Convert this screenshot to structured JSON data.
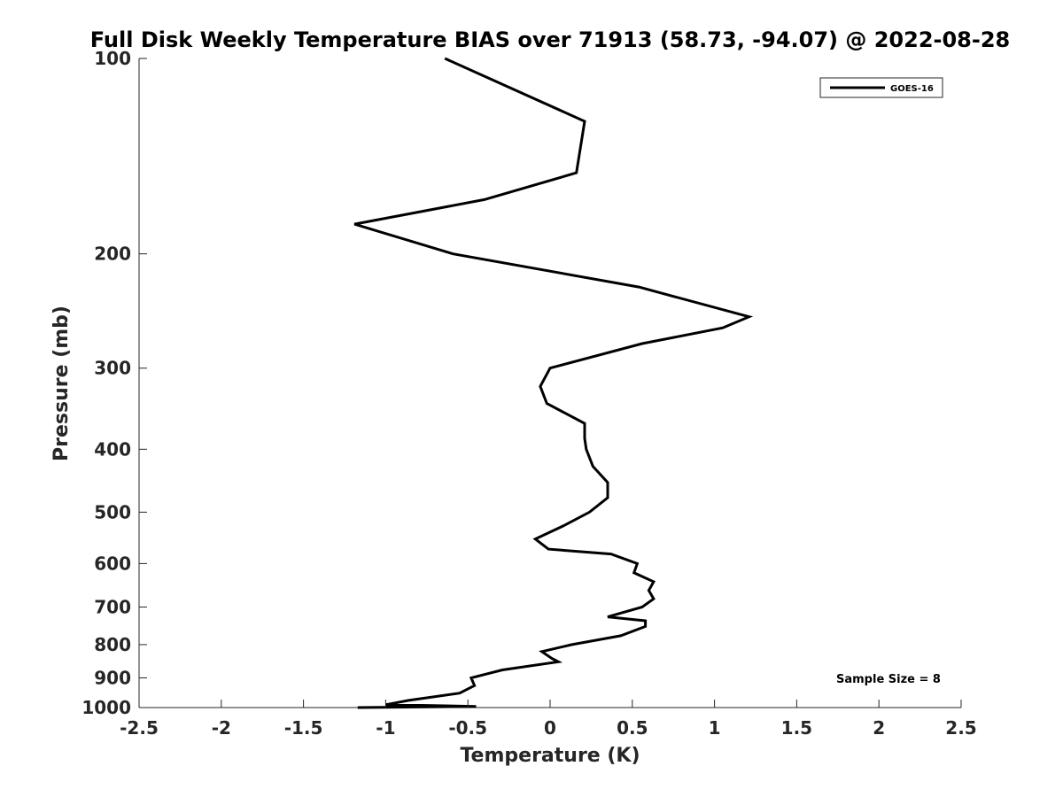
{
  "chart_data": {
    "type": "line",
    "title": "Full Disk Weekly Temperature BIAS over 71913 (58.73, -94.07) @ 2022-08-28",
    "xlabel": "Temperature (K)",
    "ylabel": "Pressure (mb)",
    "xlim": [
      -2.5,
      2.5
    ],
    "ylim": [
      100,
      1000
    ],
    "y_scale": "log",
    "y_reversed": true,
    "grid": false,
    "x_ticks": [
      -2.5,
      -2,
      -1.5,
      -1,
      -0.5,
      0,
      0.5,
      1,
      1.5,
      2,
      2.5
    ],
    "x_tick_labels": [
      "-2.5",
      "-2",
      "-1.5",
      "-1",
      "-0.5",
      "0",
      "0.5",
      "1",
      "1.5",
      "2",
      "2.5"
    ],
    "y_ticks": [
      100,
      200,
      300,
      400,
      500,
      600,
      700,
      800,
      900,
      1000
    ],
    "y_tick_labels": [
      "100",
      "200",
      "300",
      "400",
      "500",
      "600",
      "700",
      "800",
      "900",
      "1000"
    ],
    "legend": {
      "placement": "top-right",
      "entries": [
        "GOES-16"
      ]
    },
    "annotation": "Sample Size = 8",
    "series": [
      {
        "name": "GOES-16",
        "color": "#000000",
        "points": [
          {
            "t": -0.64,
            "p": 100
          },
          {
            "t": 0.21,
            "p": 125
          },
          {
            "t": 0.16,
            "p": 150
          },
          {
            "t": -0.4,
            "p": 165
          },
          {
            "t": -1.19,
            "p": 180
          },
          {
            "t": -0.59,
            "p": 200
          },
          {
            "t": 0.54,
            "p": 225
          },
          {
            "t": 1.21,
            "p": 250
          },
          {
            "t": 1.05,
            "p": 260
          },
          {
            "t": 0.56,
            "p": 275
          },
          {
            "t": 0.0,
            "p": 300
          },
          {
            "t": -0.06,
            "p": 320
          },
          {
            "t": -0.02,
            "p": 340
          },
          {
            "t": 0.21,
            "p": 365
          },
          {
            "t": 0.21,
            "p": 385
          },
          {
            "t": 0.22,
            "p": 400
          },
          {
            "t": 0.26,
            "p": 425
          },
          {
            "t": 0.35,
            "p": 450
          },
          {
            "t": 0.35,
            "p": 475
          },
          {
            "t": 0.24,
            "p": 500
          },
          {
            "t": 0.08,
            "p": 525
          },
          {
            "t": -0.09,
            "p": 550
          },
          {
            "t": -0.01,
            "p": 570
          },
          {
            "t": 0.37,
            "p": 580
          },
          {
            "t": 0.53,
            "p": 600
          },
          {
            "t": 0.51,
            "p": 620
          },
          {
            "t": 0.63,
            "p": 640
          },
          {
            "t": 0.6,
            "p": 660
          },
          {
            "t": 0.63,
            "p": 680
          },
          {
            "t": 0.56,
            "p": 700
          },
          {
            "t": 0.35,
            "p": 725
          },
          {
            "t": 0.58,
            "p": 735
          },
          {
            "t": 0.58,
            "p": 750
          },
          {
            "t": 0.43,
            "p": 775
          },
          {
            "t": 0.13,
            "p": 800
          },
          {
            "t": -0.05,
            "p": 820
          },
          {
            "t": 0.01,
            "p": 840
          },
          {
            "t": 0.05,
            "p": 850
          },
          {
            "t": -0.29,
            "p": 875
          },
          {
            "t": -0.48,
            "p": 900
          },
          {
            "t": -0.46,
            "p": 925
          },
          {
            "t": -0.55,
            "p": 950
          },
          {
            "t": -0.86,
            "p": 975
          },
          {
            "t": -1.0,
            "p": 990
          },
          {
            "t": -0.45,
            "p": 996
          },
          {
            "t": -1.17,
            "p": 1000
          }
        ]
      }
    ]
  }
}
